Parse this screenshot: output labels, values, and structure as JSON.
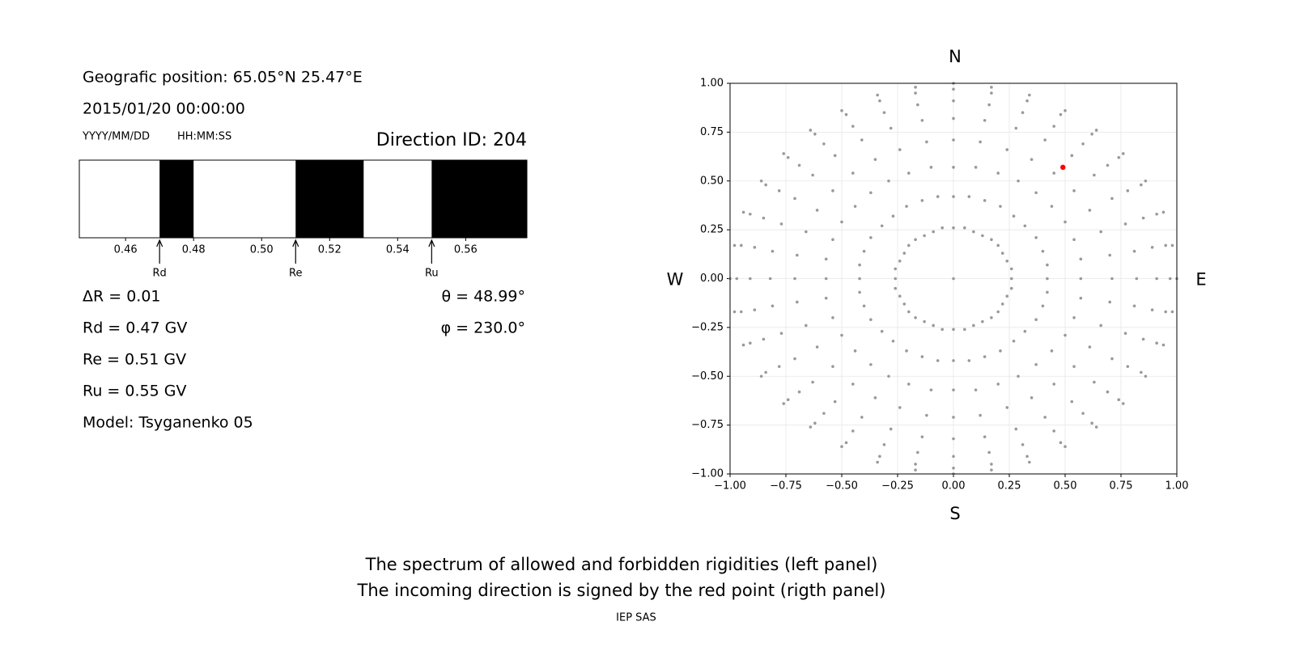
{
  "info": {
    "position": "Geografic position: 65.05°N 25.47°E",
    "datetime": "2015/01/20 00:00:00",
    "date_format": "YYYY/MM/DD",
    "time_format": "HH:MM:SS",
    "direction": "Direction ID: 204",
    "delta_r": "ΔR = 0.01",
    "rd": "Rd = 0.47 GV",
    "re": "Re = 0.51 GV",
    "ru": "Ru = 0.55 GV",
    "model": "Model: Tsyganenko 05",
    "theta": "θ = 48.99°",
    "phi": "φ = 230.0°"
  },
  "chart_data": [
    {
      "type": "spectrum",
      "xlim": [
        0.4464,
        0.578
      ],
      "xticks": [
        0.46,
        0.48,
        {
          "value": 0.5,
          "label": "0.50"
        },
        0.52,
        0.54,
        0.56
      ],
      "forbidden": [
        [
          0.47,
          0.48
        ],
        [
          0.51,
          0.53
        ],
        [
          0.55,
          0.578
        ]
      ],
      "color": "#000000",
      "markers": [
        {
          "label": "Rd",
          "value": 0.47
        },
        {
          "label": "Re",
          "value": 0.51
        },
        {
          "label": "Ru",
          "value": 0.55
        }
      ]
    },
    {
      "type": "scatter",
      "xlim": [
        -1,
        1
      ],
      "ylim": [
        -1,
        1
      ],
      "xticks": [
        {
          "value": -1,
          "label": "−1.00"
        },
        {
          "value": -0.75,
          "label": "−0.75"
        },
        {
          "value": -0.5,
          "label": "−0.50"
        },
        {
          "value": -0.25,
          "label": "−0.25"
        },
        {
          "value": 0,
          "label": "0.00"
        },
        {
          "value": 0.25,
          "label": "0.25"
        },
        {
          "value": 0.5,
          "label": "0.50"
        },
        {
          "value": 0.75,
          "label": "0.75"
        },
        {
          "value": 1,
          "label": "1.00"
        }
      ],
      "yticks": [
        {
          "value": -1,
          "label": "−1.00"
        },
        {
          "value": -0.75,
          "label": "−0.75"
        },
        {
          "value": -0.5,
          "label": "−0.50"
        },
        {
          "value": -0.25,
          "label": "−0.25"
        },
        {
          "value": 0,
          "label": "0.00"
        },
        {
          "value": 0.25,
          "label": "0.25"
        },
        {
          "value": 0.5,
          "label": "0.50"
        },
        {
          "value": 0.75,
          "label": "0.75"
        },
        {
          "value": 1,
          "label": "1.00"
        }
      ],
      "grid": true,
      "compass": {
        "north": "N",
        "south": "S",
        "west": "W",
        "east": "E"
      },
      "series": [
        {
          "color": "#999999",
          "x": [
            0
          ],
          "y": [
            0
          ]
        },
        {
          "color": "#999999",
          "x": [
            0,
            0.05,
            0.09,
            0.13,
            0.17,
            0.2,
            0.22,
            0.24,
            0.26,
            0.26,
            0.26,
            0.24,
            0.22,
            0.2,
            0.17,
            0.13,
            0.09,
            0.05,
            0,
            -0.05,
            -0.09,
            -0.13,
            -0.17,
            -0.2,
            -0.22,
            -0.24,
            -0.26,
            -0.26,
            -0.26,
            -0.24,
            -0.22,
            -0.2,
            -0.17,
            -0.13,
            -0.09,
            -0.05
          ],
          "y": [
            0.26,
            0.26,
            0.24,
            0.22,
            0.2,
            0.17,
            0.13,
            0.09,
            0.05,
            0,
            -0.05,
            -0.09,
            -0.13,
            -0.17,
            -0.2,
            -0.22,
            -0.24,
            -0.26,
            -0.26,
            -0.26,
            -0.24,
            -0.22,
            -0.2,
            -0.17,
            -0.13,
            -0.09,
            -0.05,
            0,
            0.05,
            0.09,
            0.13,
            0.17,
            0.2,
            0.22,
            0.24,
            0.26
          ]
        },
        {
          "color": "#999999",
          "x": [
            0,
            0.07,
            0.14,
            0.21,
            0.27,
            0.32,
            0.37,
            0.4,
            0.42,
            0.42,
            0.42,
            0.4,
            0.37,
            0.32,
            0.27,
            0.21,
            0.14,
            0.07,
            0,
            -0.07,
            -0.14,
            -0.21,
            -0.27,
            -0.32,
            -0.37,
            -0.4,
            -0.42,
            -0.42,
            -0.42,
            -0.4,
            -0.37,
            -0.32,
            -0.27,
            -0.21,
            -0.14,
            -0.07
          ],
          "y": [
            0.42,
            0.42,
            0.4,
            0.37,
            0.32,
            0.27,
            0.21,
            0.14,
            0.07,
            0,
            -0.07,
            -0.14,
            -0.21,
            -0.27,
            -0.32,
            -0.37,
            -0.4,
            -0.42,
            -0.42,
            -0.42,
            -0.4,
            -0.37,
            -0.32,
            -0.27,
            -0.21,
            -0.14,
            -0.07,
            0,
            0.07,
            0.14,
            0.21,
            0.27,
            0.32,
            0.37,
            0.4,
            0.42
          ]
        },
        {
          "color": "#999999",
          "x": [
            0,
            0.1,
            0.2,
            0.29,
            0.37,
            0.44,
            0.5,
            0.54,
            0.57,
            0.57,
            0.57,
            0.54,
            0.5,
            0.44,
            0.37,
            0.29,
            0.2,
            0.1,
            0,
            -0.1,
            -0.2,
            -0.29,
            -0.37,
            -0.44,
            -0.5,
            -0.54,
            -0.57,
            -0.57,
            -0.57,
            -0.54,
            -0.5,
            -0.44,
            -0.37,
            -0.29,
            -0.2,
            -0.1
          ],
          "y": [
            0.57,
            0.57,
            0.54,
            0.5,
            0.44,
            0.37,
            0.29,
            0.2,
            0.1,
            0,
            -0.1,
            -0.2,
            -0.29,
            -0.37,
            -0.44,
            -0.5,
            -0.54,
            -0.57,
            -0.57,
            -0.57,
            -0.54,
            -0.5,
            -0.44,
            -0.37,
            -0.29,
            -0.2,
            -0.1,
            0,
            0.1,
            0.2,
            0.29,
            0.37,
            0.44,
            0.5,
            0.54,
            0.57
          ]
        },
        {
          "color": "#999999",
          "x": [
            0,
            0.12,
            0.24,
            0.35,
            0.45,
            0.54,
            0.61,
            0.66,
            0.7,
            0.71,
            0.7,
            0.66,
            0.61,
            0.54,
            0.45,
            0.35,
            0.24,
            0.12,
            0,
            -0.12,
            -0.24,
            -0.35,
            -0.45,
            -0.54,
            -0.61,
            -0.66,
            -0.7,
            -0.71,
            -0.7,
            -0.66,
            -0.61,
            -0.54,
            -0.45,
            -0.35,
            -0.24,
            -0.12
          ],
          "y": [
            0.71,
            0.7,
            0.66,
            0.61,
            0.54,
            0.45,
            0.35,
            0.24,
            0.12,
            0,
            -0.12,
            -0.24,
            -0.35,
            -0.45,
            -0.54,
            -0.61,
            -0.66,
            -0.7,
            -0.71,
            -0.7,
            -0.66,
            -0.61,
            -0.54,
            -0.45,
            -0.35,
            -0.24,
            -0.12,
            0,
            0.12,
            0.24,
            0.35,
            0.45,
            0.54,
            0.61,
            0.66,
            0.7
          ]
        },
        {
          "color": "#999999",
          "x": [
            0,
            0.14,
            0.28,
            0.41,
            0.53,
            0.63,
            0.71,
            0.77,
            0.81,
            0.82,
            0.81,
            0.77,
            0.71,
            0.63,
            0.53,
            0.41,
            0.28,
            0.14,
            0,
            -0.14,
            -0.28,
            -0.41,
            -0.53,
            -0.63,
            -0.71,
            -0.77,
            -0.81,
            -0.82,
            -0.81,
            -0.77,
            -0.71,
            -0.63,
            -0.53,
            -0.41,
            -0.28,
            -0.14
          ],
          "y": [
            0.82,
            0.81,
            0.77,
            0.71,
            0.63,
            0.53,
            0.41,
            0.28,
            0.14,
            0,
            -0.14,
            -0.28,
            -0.41,
            -0.53,
            -0.63,
            -0.71,
            -0.77,
            -0.81,
            -0.82,
            -0.81,
            -0.77,
            -0.71,
            -0.63,
            -0.53,
            -0.41,
            -0.28,
            -0.14,
            0,
            0.14,
            0.28,
            0.41,
            0.53,
            0.63,
            0.71,
            0.77,
            0.81
          ]
        },
        {
          "color": "#999999",
          "x": [
            0,
            0.16,
            0.31,
            0.45,
            0.58,
            0.69,
            0.78,
            0.85,
            0.89,
            0.91,
            0.89,
            0.85,
            0.78,
            0.69,
            0.58,
            0.45,
            0.31,
            0.16,
            0,
            -0.16,
            -0.31,
            -0.45,
            -0.58,
            -0.69,
            -0.78,
            -0.85,
            -0.89,
            -0.91,
            -0.89,
            -0.85,
            -0.78,
            -0.69,
            -0.58,
            -0.45,
            -0.31,
            -0.16
          ],
          "y": [
            0.91,
            0.89,
            0.85,
            0.78,
            0.69,
            0.58,
            0.45,
            0.31,
            0.16,
            0,
            -0.16,
            -0.31,
            -0.45,
            -0.58,
            -0.69,
            -0.78,
            -0.85,
            -0.89,
            -0.91,
            -0.89,
            -0.85,
            -0.78,
            -0.69,
            -0.58,
            -0.45,
            -0.31,
            -0.16,
            0,
            0.16,
            0.31,
            0.45,
            0.58,
            0.69,
            0.78,
            0.85,
            0.89
          ]
        },
        {
          "color": "#999999",
          "x": [
            0,
            0.17,
            0.33,
            0.48,
            0.62,
            0.74,
            0.84,
            0.91,
            0.95,
            0.97,
            0.95,
            0.91,
            0.84,
            0.74,
            0.62,
            0.48,
            0.33,
            0.17,
            0,
            -0.17,
            -0.33,
            -0.48,
            -0.62,
            -0.74,
            -0.84,
            -0.91,
            -0.95,
            -0.97,
            -0.95,
            -0.91,
            -0.84,
            -0.74,
            -0.62,
            -0.48,
            -0.33,
            -0.17
          ],
          "y": [
            0.97,
            0.95,
            0.91,
            0.84,
            0.74,
            0.62,
            0.48,
            0.33,
            0.17,
            0,
            -0.17,
            -0.33,
            -0.48,
            -0.62,
            -0.74,
            -0.84,
            -0.91,
            -0.95,
            -0.97,
            -0.95,
            -0.91,
            -0.84,
            -0.74,
            -0.62,
            -0.48,
            -0.33,
            -0.17,
            0,
            0.17,
            0.33,
            0.48,
            0.62,
            0.74,
            0.84,
            0.91,
            0.95
          ]
        },
        {
          "color": "#999999",
          "x": [
            0,
            0.17,
            0.34,
            0.5,
            0.64,
            0.76,
            0.86,
            0.94,
            0.98,
            1,
            0.98,
            0.94,
            0.86,
            0.76,
            0.64,
            0.5,
            0.34,
            0.17,
            0,
            -0.17,
            -0.34,
            -0.5,
            -0.64,
            -0.76,
            -0.86,
            -0.94,
            -0.98,
            -1,
            -0.98,
            -0.94,
            -0.86,
            -0.76,
            -0.64,
            -0.5,
            -0.34,
            -0.17
          ],
          "y": [
            1,
            0.98,
            0.94,
            0.86,
            0.76,
            0.64,
            0.5,
            0.34,
            0.17,
            0,
            -0.17,
            -0.34,
            -0.5,
            -0.64,
            -0.76,
            -0.86,
            -0.94,
            -0.98,
            -1,
            -0.98,
            -0.94,
            -0.86,
            -0.76,
            -0.64,
            -0.5,
            -0.34,
            -0.17,
            0,
            0.17,
            0.34,
            0.5,
            0.64,
            0.76,
            0.86,
            0.94,
            0.98
          ]
        },
        {
          "color": "#ff0000",
          "x": [
            0.49
          ],
          "y": [
            0.57
          ]
        }
      ]
    }
  ],
  "caption": [
    "The spectrum of allowed and forbidden rigidities (left panel)",
    "The incoming direction is signed by the red point (rigth panel)"
  ],
  "footer": "IEP SAS"
}
